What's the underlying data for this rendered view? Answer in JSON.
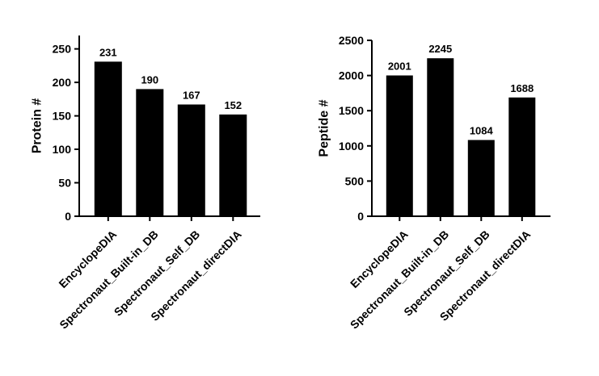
{
  "chart_data": [
    {
      "type": "bar",
      "categories": [
        "EncyclopeDIA",
        "Spectronaut_Built-in_DB",
        "Spectronaut_Self_DB",
        "Spectronaut_directDIA"
      ],
      "values": [
        231,
        190,
        167,
        152
      ],
      "value_labels": [
        "231",
        "190",
        "167",
        "152"
      ],
      "ylabel": "Protein #",
      "ylim": [
        0,
        270
      ],
      "yticks": [
        0,
        50,
        100,
        150,
        200,
        250
      ],
      "bar_color": "#000000",
      "grid": false
    },
    {
      "type": "bar",
      "categories": [
        "EncyclopeDIA",
        "Spectronaut_Built-in_DB",
        "Spectronaut_Self_DB",
        "Spectronaut_directDIA"
      ],
      "values": [
        2001,
        2245,
        1084,
        1688
      ],
      "value_labels": [
        "2001",
        "2245",
        "1084",
        "1688"
      ],
      "ylabel": "Peptide #",
      "ylim": [
        0,
        2500
      ],
      "yticks": [
        0,
        500,
        1000,
        1500,
        2000,
        2500
      ],
      "bar_color": "#000000",
      "grid": false
    }
  ]
}
